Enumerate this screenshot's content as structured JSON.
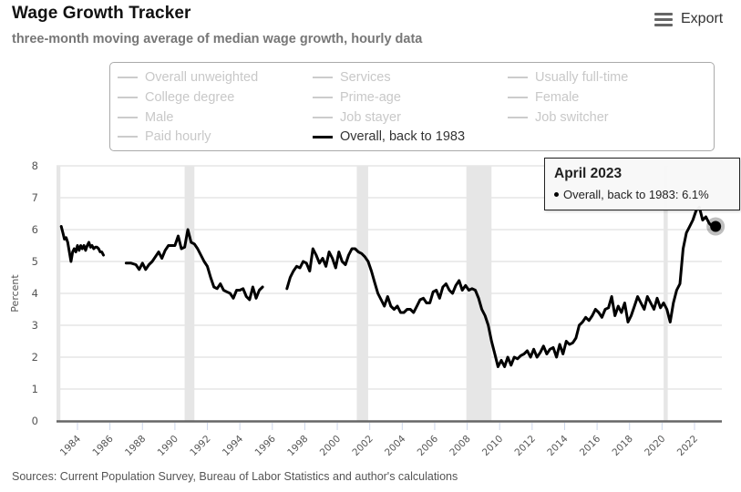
{
  "header": {
    "title": "Wage Growth Tracker",
    "subtitle": "three-month moving average of median wage growth, hourly data",
    "export_label": "Export",
    "export_icon": "hamburger-menu-icon"
  },
  "legend": {
    "items": [
      {
        "label": "Overall unweighted",
        "active": false
      },
      {
        "label": "Services",
        "active": false
      },
      {
        "label": "Usually full-time",
        "active": false
      },
      {
        "label": "College degree",
        "active": false
      },
      {
        "label": "Prime-age",
        "active": false
      },
      {
        "label": "Female",
        "active": false
      },
      {
        "label": "Male",
        "active": false
      },
      {
        "label": "Job stayer",
        "active": false
      },
      {
        "label": "Job switcher",
        "active": false
      },
      {
        "label": "Paid hourly",
        "active": false
      },
      {
        "label": "Overall, back to 1983",
        "active": true
      }
    ]
  },
  "tooltip": {
    "date": "April 2023",
    "series": "Overall, back to 1983",
    "value": "6.1%",
    "text": "Overall, back to 1983: 6.1%"
  },
  "footer": {
    "source": "Sources: Current Population Survey, Bureau of Labor Statistics and author's calculations"
  },
  "colors": {
    "line": "#000000",
    "inactive_legend": "#c8c8c8",
    "recession_band": "#e6e6e6",
    "grid": "#e6e6e6"
  },
  "chart_data": {
    "type": "line",
    "title": "Wage Growth Tracker",
    "subtitle": "three-month moving average of median wage growth, hourly data",
    "xlabel": "",
    "ylabel": "Percent",
    "ylim": [
      0,
      8
    ],
    "yticks": [
      0,
      1,
      2,
      3,
      4,
      5,
      6,
      7,
      8
    ],
    "xlim": [
      1982.7,
      2023.7
    ],
    "xticks": [
      1984,
      1986,
      1988,
      1990,
      1992,
      1994,
      1996,
      1998,
      2000,
      2002,
      2004,
      2006,
      2008,
      2010,
      2012,
      2014,
      2016,
      2018,
      2020,
      2022
    ],
    "grid": true,
    "legend_position": "top",
    "recessions": [
      [
        1982.7,
        1982.95
      ],
      [
        1990.6,
        1991.2
      ],
      [
        2001.2,
        2001.9
      ],
      [
        2007.95,
        2009.5
      ],
      [
        2020.1,
        2020.35
      ]
    ],
    "series": [
      {
        "name": "Overall, back to 1983",
        "segments": [
          {
            "x": [
              1983.0,
              1983.1,
              1983.2,
              1983.3,
              1983.4,
              1983.5,
              1983.6,
              1983.7,
              1983.8,
              1983.9,
              1984.0,
              1984.1,
              1984.2,
              1984.3,
              1984.4,
              1984.5,
              1984.6,
              1984.7,
              1984.8,
              1984.9,
              1985.0,
              1985.1,
              1985.2,
              1985.3,
              1985.4,
              1985.5,
              1985.6
            ],
            "y": [
              6.1,
              5.9,
              5.7,
              5.75,
              5.6,
              5.3,
              5.0,
              5.3,
              5.4,
              5.3,
              5.5,
              5.35,
              5.5,
              5.4,
              5.5,
              5.35,
              5.5,
              5.6,
              5.45,
              5.5,
              5.4,
              5.45,
              5.45,
              5.4,
              5.3,
              5.3,
              5.2
            ]
          },
          {
            "x": [
              1987.0,
              1987.3,
              1987.6,
              1987.8,
              1988.0,
              1988.2,
              1988.4,
              1988.6,
              1988.8,
              1989.0,
              1989.2,
              1989.4,
              1989.6,
              1989.8,
              1990.0,
              1990.2,
              1990.4,
              1990.6,
              1990.8,
              1991.0,
              1991.2,
              1991.4,
              1991.6,
              1991.8,
              1992.0,
              1992.2,
              1992.4,
              1992.6,
              1992.8,
              1993.0,
              1993.2,
              1993.4,
              1993.6,
              1993.8,
              1994.0,
              1994.2,
              1994.4,
              1994.6,
              1994.8,
              1995.0,
              1995.2,
              1995.4
            ],
            "y": [
              4.95,
              4.95,
              4.9,
              4.75,
              4.95,
              4.75,
              4.9,
              5.0,
              5.15,
              5.3,
              5.1,
              5.35,
              5.5,
              5.5,
              5.5,
              5.8,
              5.4,
              5.45,
              6.0,
              5.6,
              5.55,
              5.4,
              5.2,
              5.0,
              4.85,
              4.5,
              4.2,
              4.15,
              4.3,
              4.1,
              4.05,
              4.0,
              3.85,
              4.1,
              4.1,
              4.15,
              3.9,
              3.8,
              4.2,
              3.85,
              4.1,
              4.2
            ]
          },
          {
            "x": [
              1996.9,
              1997.1,
              1997.3,
              1997.5,
              1997.7,
              1997.9,
              1998.1,
              1998.3,
              1998.5,
              1998.7,
              1998.9,
              1999.1,
              1999.3,
              1999.5,
              1999.7,
              1999.9,
              2000.1,
              2000.3,
              2000.5,
              2000.7,
              2000.9,
              2001.1,
              2001.3,
              2001.5,
              2001.7,
              2001.9,
              2002.1,
              2002.3,
              2002.5,
              2002.7,
              2002.9,
              2003.1,
              2003.3,
              2003.5,
              2003.7,
              2003.9,
              2004.1,
              2004.3,
              2004.5,
              2004.7,
              2004.9,
              2005.1,
              2005.3,
              2005.5,
              2005.7,
              2005.9,
              2006.1,
              2006.3,
              2006.5,
              2006.7,
              2006.9,
              2007.1,
              2007.3,
              2007.5,
              2007.7,
              2007.9,
              2008.1,
              2008.3,
              2008.5,
              2008.7,
              2008.9,
              2009.1,
              2009.3,
              2009.5,
              2009.7,
              2009.9,
              2010.1,
              2010.3,
              2010.5,
              2010.7,
              2010.9,
              2011.1,
              2011.3,
              2011.5,
              2011.7,
              2011.9,
              2012.1,
              2012.3,
              2012.5,
              2012.7,
              2012.9,
              2013.1,
              2013.3,
              2013.5,
              2013.7,
              2013.9,
              2014.1,
              2014.3,
              2014.5,
              2014.7,
              2014.9,
              2015.1,
              2015.3,
              2015.5,
              2015.7,
              2015.9,
              2016.1,
              2016.3,
              2016.5,
              2016.7,
              2016.9,
              2017.1,
              2017.3,
              2017.5,
              2017.7,
              2017.9,
              2018.1,
              2018.3,
              2018.5,
              2018.7,
              2018.9,
              2019.1,
              2019.3,
              2019.5,
              2019.7,
              2019.9,
              2020.1,
              2020.3,
              2020.5,
              2020.7,
              2020.9,
              2021.1,
              2021.3,
              2021.5,
              2021.7,
              2021.9,
              2022.1,
              2022.3,
              2022.5,
              2022.7,
              2022.9,
              2023.1,
              2023.3
            ],
            "y": [
              4.15,
              4.5,
              4.7,
              4.85,
              4.8,
              5.0,
              4.95,
              4.7,
              5.4,
              5.2,
              4.95,
              5.1,
              4.85,
              5.3,
              5.1,
              4.8,
              5.3,
              5.0,
              4.9,
              5.2,
              5.4,
              5.4,
              5.3,
              5.25,
              5.15,
              5.0,
              4.7,
              4.35,
              4.0,
              3.8,
              3.6,
              3.9,
              3.6,
              3.5,
              3.6,
              3.4,
              3.4,
              3.5,
              3.5,
              3.4,
              3.6,
              3.8,
              3.85,
              3.7,
              3.7,
              4.05,
              4.1,
              3.85,
              4.2,
              4.3,
              4.1,
              4.0,
              4.25,
              4.4,
              4.1,
              4.25,
              4.1,
              4.15,
              4.1,
              3.85,
              3.5,
              3.3,
              3.0,
              2.5,
              2.1,
              1.7,
              1.9,
              1.7,
              2.0,
              1.75,
              2.0,
              1.95,
              2.05,
              2.1,
              2.2,
              2.0,
              2.25,
              2.0,
              2.15,
              2.35,
              2.1,
              2.25,
              2.3,
              2.0,
              2.4,
              2.1,
              2.5,
              2.4,
              2.45,
              2.6,
              3.0,
              3.1,
              3.25,
              3.15,
              3.3,
              3.5,
              3.4,
              3.25,
              3.5,
              3.55,
              3.9,
              3.3,
              3.6,
              3.4,
              3.7,
              3.1,
              3.3,
              3.6,
              3.9,
              3.7,
              3.5,
              3.9,
              3.7,
              3.5,
              3.85,
              3.55,
              3.7,
              3.5,
              3.1,
              3.7,
              4.1,
              4.3,
              5.4,
              5.9,
              6.1,
              6.3,
              6.6,
              6.7,
              6.3,
              6.4,
              6.2,
              6.1,
              6.1
            ]
          }
        ]
      }
    ],
    "highlight": {
      "label": "April 2023",
      "x": 2023.3,
      "y": 6.1
    }
  }
}
